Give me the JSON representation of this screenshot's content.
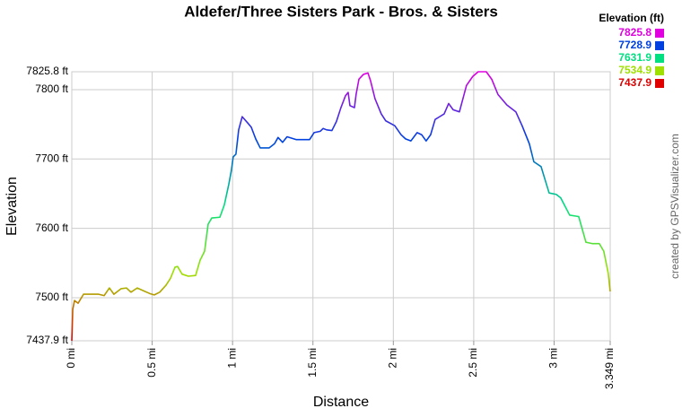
{
  "chart_data": {
    "type": "line",
    "title": "Aldefer/Three Sisters Park - Bros. & Sisters",
    "x_label": "Distance",
    "y_label": "Elevation",
    "credit": "created by GPSVisualizer.com",
    "legend": {
      "title": "Elevation (ft)",
      "stops": [
        {
          "value": 7825.8,
          "color": "#e000e0"
        },
        {
          "value": 7728.9,
          "color": "#0040e0"
        },
        {
          "value": 7631.9,
          "color": "#00e080"
        },
        {
          "value": 7534.9,
          "color": "#a0e000"
        },
        {
          "value": 7437.9,
          "color": "#e00000"
        }
      ]
    },
    "xlim": [
      0,
      3.349
    ],
    "ylim": [
      7437.9,
      7825.8
    ],
    "grid": true,
    "xticks": [
      {
        "value": 0,
        "label": "0 mi"
      },
      {
        "value": 0.5,
        "label": "0.5 mi"
      },
      {
        "value": 1,
        "label": "1 mi"
      },
      {
        "value": 1.5,
        "label": "1.5 mi"
      },
      {
        "value": 2,
        "label": "2 mi"
      },
      {
        "value": 2.5,
        "label": "2.5 mi"
      },
      {
        "value": 3,
        "label": "3 mi"
      },
      {
        "value": 3.349,
        "label": "3.349 mi"
      }
    ],
    "yticks": [
      {
        "value": 7437.9,
        "label": "7437.9 ft"
      },
      {
        "value": 7500,
        "label": "7500 ft"
      },
      {
        "value": 7600,
        "label": "7600 ft"
      },
      {
        "value": 7700,
        "label": "7700 ft"
      },
      {
        "value": 7800,
        "label": "7800 ft"
      },
      {
        "value": 7825.8,
        "label": "7825.8 ft"
      }
    ],
    "series": [
      {
        "name": "Elevation",
        "x": [
          0,
          0.006,
          0.017,
          0.039,
          0.073,
          0.167,
          0.201,
          0.234,
          0.262,
          0.307,
          0.34,
          0.368,
          0.407,
          0.446,
          0.485,
          0.513,
          0.547,
          0.586,
          0.614,
          0.642,
          0.658,
          0.686,
          0.725,
          0.77,
          0.798,
          0.826,
          0.848,
          0.871,
          0.921,
          0.949,
          0.977,
          0.993,
          1.004,
          1.021,
          1.038,
          1.06,
          1.094,
          1.116,
          1.144,
          1.172,
          1.228,
          1.261,
          1.283,
          1.311,
          1.339,
          1.395,
          1.479,
          1.507,
          1.546,
          1.563,
          1.585,
          1.618,
          1.646,
          1.674,
          1.702,
          1.719,
          1.73,
          1.758,
          1.769,
          1.786,
          1.814,
          1.842,
          1.858,
          1.886,
          1.925,
          1.953,
          2.009,
          2.048,
          2.076,
          2.109,
          2.148,
          2.176,
          2.204,
          2.232,
          2.26,
          2.288,
          2.316,
          2.344,
          2.372,
          2.411,
          2.455,
          2.494,
          2.528,
          2.578,
          2.612,
          2.651,
          2.706,
          2.762,
          2.801,
          2.846,
          2.874,
          2.919,
          2.969,
          3.013,
          3.041,
          3.097,
          3.153,
          3.198,
          3.237,
          3.281,
          3.309,
          3.337,
          3.349
        ],
        "values": [
          7437.9,
          7483,
          7496,
          7492,
          7505,
          7505,
          7503,
          7514,
          7505,
          7513,
          7514,
          7508,
          7514,
          7510,
          7506,
          7504,
          7508,
          7518,
          7528,
          7544,
          7545,
          7534,
          7531,
          7532,
          7554,
          7567,
          7606,
          7615,
          7616,
          7634,
          7664,
          7684,
          7703,
          7707,
          7742,
          7761,
          7752,
          7746,
          7729,
          7716,
          7716,
          7722,
          7731,
          7724,
          7732,
          7728,
          7728,
          7738,
          7740,
          7744,
          7742,
          7741,
          7754,
          7774,
          7791,
          7796,
          7777,
          7774,
          7794,
          7815,
          7822,
          7824,
          7813,
          7787,
          7765,
          7755,
          7748,
          7735,
          7729,
          7726,
          7738,
          7735,
          7726,
          7735,
          7757,
          7761,
          7765,
          7780,
          7771,
          7768,
          7806,
          7819,
          7825.8,
          7825.8,
          7815,
          7793,
          7778,
          7768,
          7748,
          7722,
          7696,
          7689,
          7651,
          7649,
          7644,
          7619,
          7617,
          7580,
          7578,
          7578,
          7567,
          7535,
          7509
        ]
      }
    ]
  }
}
